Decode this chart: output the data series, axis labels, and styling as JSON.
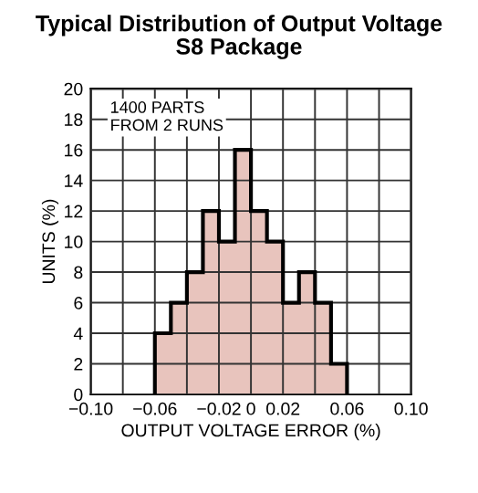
{
  "chart_data": {
    "type": "histogram",
    "title": "Typical Distribution of Output Voltage\nS8 Package",
    "xlabel": "OUTPUT VOLTAGE ERROR (%)",
    "ylabel": "UNITS (%)",
    "bins": [
      -0.06,
      -0.05,
      -0.04,
      -0.03,
      -0.02,
      -0.01,
      0,
      0.01,
      0.02,
      0.03,
      0.04,
      0.05,
      0.06
    ],
    "values": [
      4,
      6,
      8,
      12,
      10,
      16,
      12,
      10,
      6,
      8,
      6,
      2
    ],
    "color": "#e8c4bd",
    "xlim": [
      -0.1,
      0.1
    ],
    "xticks": [
      {
        "value": -0.1,
        "label": "−0.10"
      },
      {
        "value": -0.08,
        "label": null
      },
      {
        "value": -0.06,
        "label": "−0.06"
      },
      {
        "value": -0.04,
        "label": null
      },
      {
        "value": -0.02,
        "label": "−0.02"
      },
      0,
      0.02,
      {
        "value": 0.04,
        "label": null
      },
      0.06,
      {
        "value": 0.08,
        "label": null
      },
      {
        "value": 0.1,
        "label": "0.10"
      }
    ],
    "ylim": [
      0,
      20
    ],
    "yticks": [
      0,
      2,
      4,
      6,
      8,
      10,
      12,
      14,
      16,
      18,
      20
    ],
    "grid": true,
    "annotations": [
      "1400 PARTS\nFROM 2 RUNS"
    ]
  }
}
